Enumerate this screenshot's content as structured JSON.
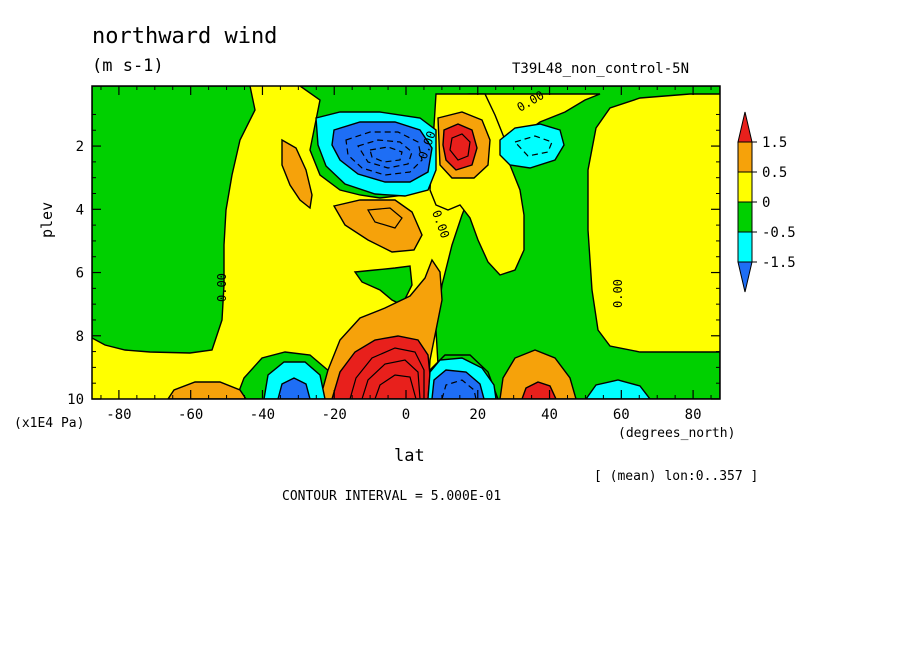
{
  "chart_data": {
    "type": "heatmap",
    "title": "northward wind",
    "units": "(m s-1)",
    "run_label": "T39L48_non_control-5N",
    "xlabel": "lat",
    "xunits": "(degrees_north)",
    "ylabel": "plev",
    "yunits": "(x1E4 Pa)",
    "mean_note": "[ (mean) lon:0..357 ]",
    "contour_interval_text": "CONTOUR INTERVAL = 5.000E-01",
    "x_ticks": [
      "-80",
      "-60",
      "-40",
      "-20",
      "0",
      "20",
      "40",
      "60",
      "80"
    ],
    "x_tick_values": [
      -80,
      -60,
      -40,
      -20,
      0,
      20,
      40,
      60,
      80
    ],
    "y_ticks": [
      "2",
      "4",
      "6",
      "8",
      "10"
    ],
    "y_tick_values": [
      2,
      4,
      6,
      8,
      10
    ],
    "xlim": [
      -87.5,
      87.5
    ],
    "ylim": [
      0.1,
      10
    ],
    "colorbar": {
      "labels": [
        "1.5",
        "0.5",
        "0",
        "-0.5",
        "-1.5"
      ],
      "colors": [
        "#e8201c",
        "#f6a20a",
        "#ffff00",
        "#00d000",
        "#00ffff",
        "#1e6ef5"
      ]
    },
    "contour_labels": [
      "0.00",
      "0.00",
      "0.00",
      "0.00",
      "0.00"
    ],
    "colors": {
      "red": "#e8201c",
      "orange": "#f6a20a",
      "yellow": "#ffff00",
      "green": "#00d000",
      "cyan": "#00ffff",
      "blue": "#1e6ef5"
    }
  }
}
